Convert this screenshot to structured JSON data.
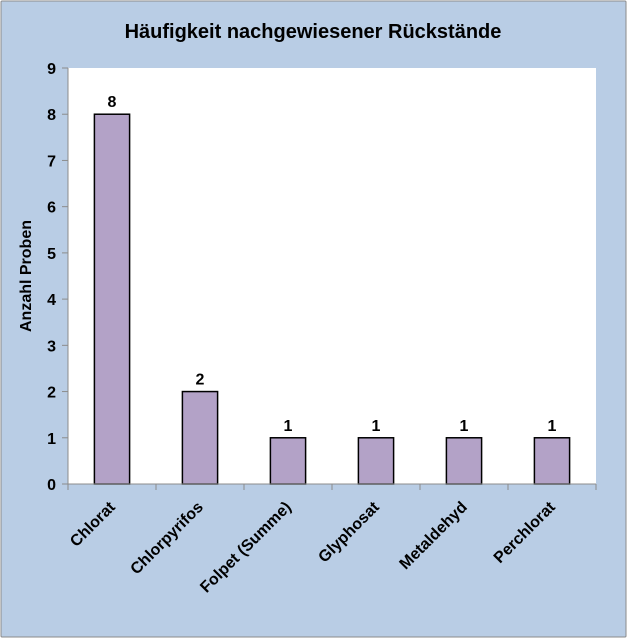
{
  "colors": {
    "background": "#b9cde5",
    "plot_area": "#ffffff",
    "bar_fill": "#b3a2c7",
    "bar_stroke": "#000000"
  },
  "chart_data": {
    "type": "bar",
    "title": "Häufigkeit nachgewiesener Rückstände",
    "xlabel": "",
    "ylabel": "Anzahl Proben",
    "categories": [
      "Chlorat",
      "Chlorpyrifos",
      "Folpet (Summe)",
      "Glyphosat",
      "Metaldehyd",
      "Perchlorat"
    ],
    "values": [
      8,
      2,
      1,
      1,
      1,
      1
    ],
    "data_labels": [
      "8",
      "2",
      "1",
      "1",
      "1",
      "1"
    ],
    "ylim": [
      0,
      9
    ],
    "yticks": [
      "0",
      "1",
      "2",
      "3",
      "4",
      "5",
      "6",
      "7",
      "8",
      "9"
    ],
    "grid": false,
    "legend": "none"
  }
}
